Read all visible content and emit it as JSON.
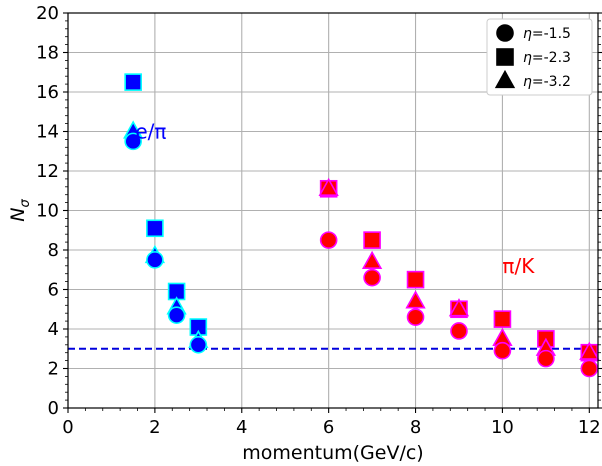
{
  "chart_data": {
    "type": "scatter",
    "xlabel": "momentum(GeV/c)",
    "ylabel": "N",
    "ylabel_subscript": "σ",
    "xlim": [
      0,
      12.2
    ],
    "ylim": [
      0,
      20
    ],
    "xticks": [
      0,
      2,
      4,
      6,
      8,
      10,
      12
    ],
    "yticks": [
      0,
      2,
      4,
      6,
      8,
      10,
      12,
      14,
      16,
      18,
      20
    ],
    "grid": true,
    "legend_position": "top-right",
    "legend": [
      {
        "marker": "circle",
        "prefix": "η",
        "value": "=-1.5"
      },
      {
        "marker": "square",
        "prefix": "η",
        "value": "=-2.3"
      },
      {
        "marker": "triangle",
        "prefix": "η",
        "value": "=-3.2"
      }
    ],
    "threshold": {
      "y": 3,
      "color": "#0000dd",
      "style": "dashed"
    },
    "groups": [
      {
        "label": "e/π",
        "label_pos": {
          "x": 1.55,
          "y": 14.0
        },
        "fill": "#0000ff",
        "edge": "#00ffff",
        "series": [
          {
            "marker": "square",
            "x": [
              1.5,
              2.0,
              2.5,
              3.0
            ],
            "y": [
              16.5,
              9.1,
              5.9,
              4.1
            ]
          },
          {
            "marker": "triangle",
            "x": [
              1.5,
              2.0,
              2.5,
              3.0
            ],
            "y": [
              14.0,
              7.7,
              5.1,
              3.4
            ]
          },
          {
            "marker": "circle",
            "x": [
              1.5,
              2.0,
              2.5,
              3.0
            ],
            "y": [
              13.5,
              7.5,
              4.7,
              3.2
            ]
          }
        ]
      },
      {
        "label": "π/K",
        "label_pos": {
          "x": 10.0,
          "y": 7.2
        },
        "fill": "#ff0000",
        "edge": "#ff00ff",
        "series": [
          {
            "marker": "square",
            "x": [
              6,
              7,
              8,
              9,
              10,
              11,
              12
            ],
            "y": [
              11.1,
              8.5,
              6.5,
              5.0,
              4.5,
              3.5,
              2.8
            ]
          },
          {
            "marker": "triangle",
            "x": [
              6,
              7,
              8,
              9,
              10,
              11,
              12
            ],
            "y": [
              11.1,
              7.4,
              5.4,
              5.0,
              3.5,
              3.0,
              2.8
            ]
          },
          {
            "marker": "circle",
            "x": [
              6,
              7,
              8,
              9,
              10,
              11,
              12
            ],
            "y": [
              8.5,
              6.6,
              4.6,
              3.9,
              2.9,
              2.5,
              2.0
            ]
          }
        ]
      }
    ]
  }
}
